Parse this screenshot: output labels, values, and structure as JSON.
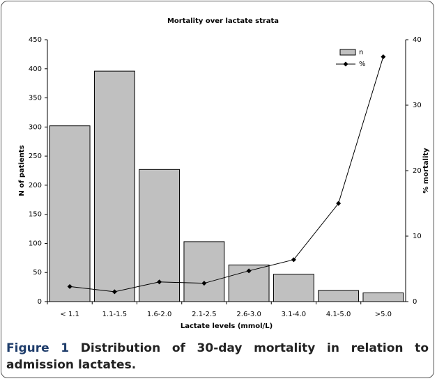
{
  "chart_data": {
    "type": "bar",
    "title": "Mortality over lactate strata",
    "x_label": "Lactate levels (mmol/L)",
    "y_label": "N of patients",
    "y2_label": "% mortality",
    "categories": [
      "< 1.1",
      "1.1-1.5",
      "1.6-2.0",
      "2.1-2.5",
      "2.6-3.0",
      "3.1-4.0",
      "4.1-5.0",
      ">5.0"
    ],
    "series": [
      {
        "name": "n",
        "type": "bar",
        "color": "#c0c0c0",
        "values": [
          302,
          396,
          227,
          103,
          63,
          47,
          19,
          15
        ]
      },
      {
        "name": "%",
        "type": "line",
        "axis": "y2",
        "color": "#000000",
        "values": [
          2.3,
          1.5,
          3.0,
          2.8,
          4.7,
          6.4,
          15.0,
          37.4
        ]
      }
    ],
    "ylim": [
      0,
      450
    ],
    "yticks": [
      0,
      50,
      100,
      150,
      200,
      250,
      300,
      350,
      400,
      450
    ],
    "y2lim": [
      0,
      40
    ],
    "y2ticks": [
      0,
      10,
      20,
      30,
      40
    ],
    "grid": false,
    "legend": "top-right"
  },
  "caption": {
    "label": "Figure 1",
    "text": "Distribution of 30-day mortality in relation to admission lactates."
  }
}
